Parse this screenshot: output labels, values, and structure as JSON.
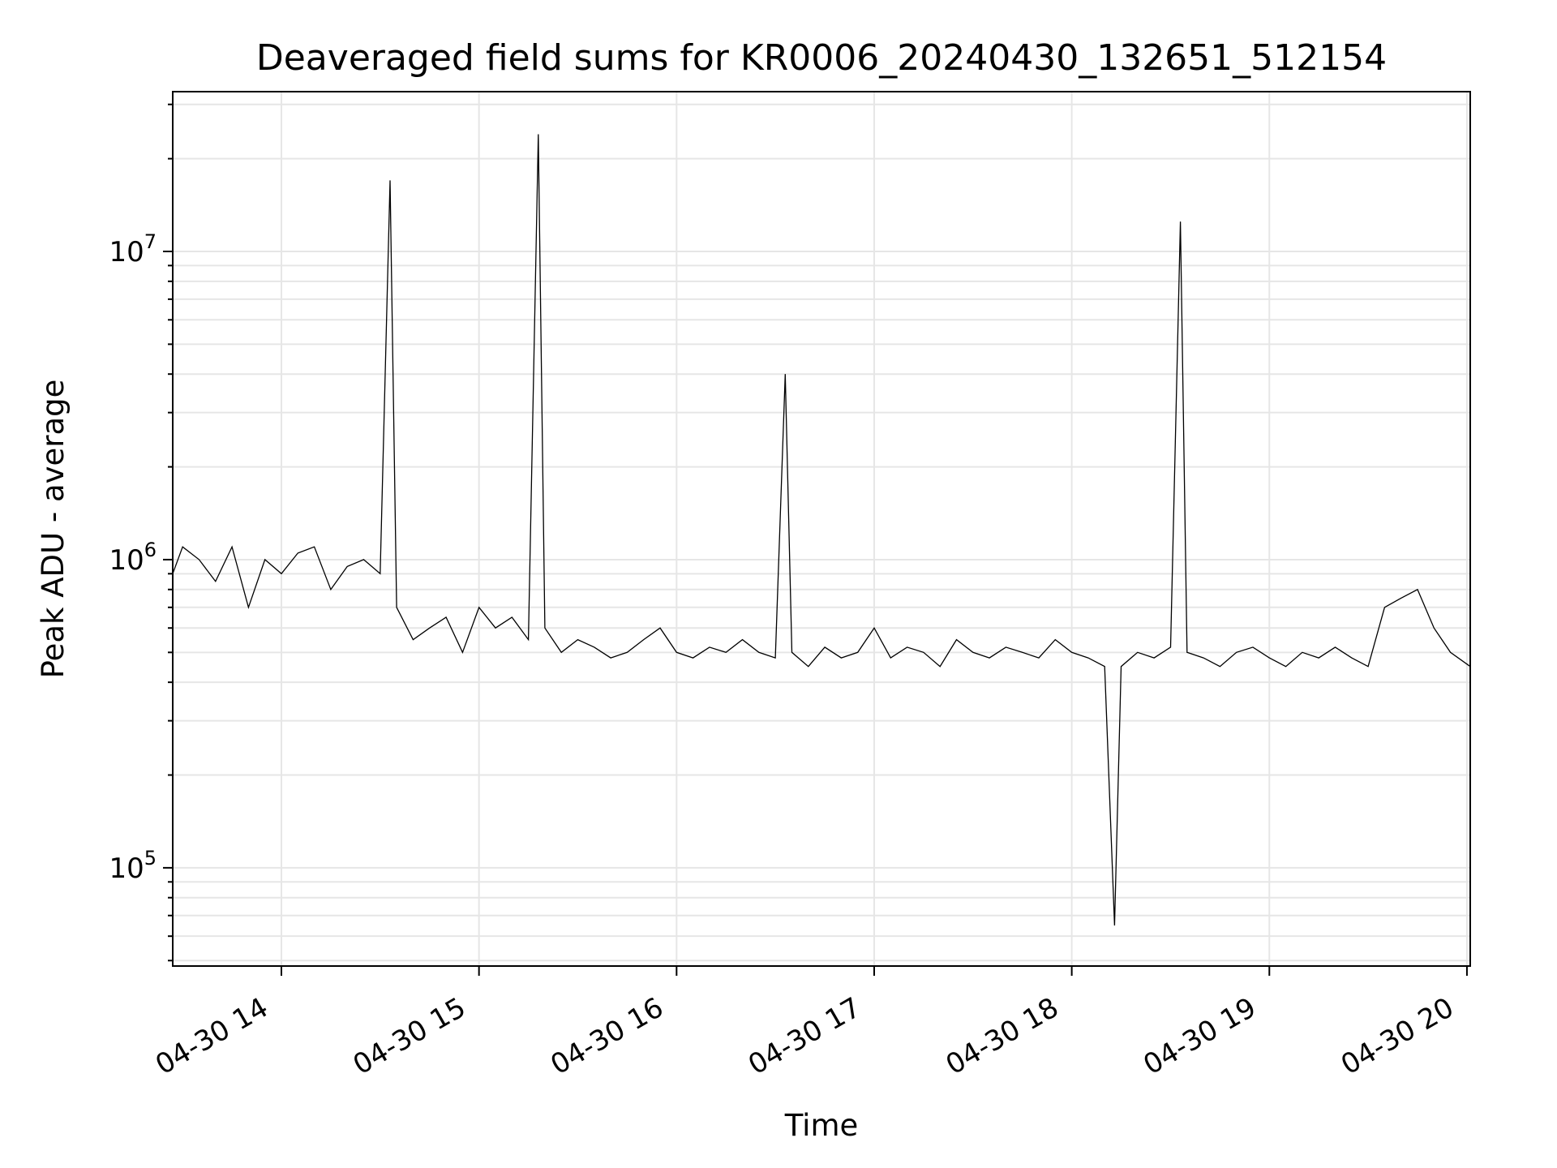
{
  "chart_data": {
    "type": "line",
    "title": "Deaveraged field sums for KR0006_20240430_132651_512154",
    "xlabel": "Time",
    "ylabel": "Peak ADU - average",
    "xscale": "time",
    "yscale": "log",
    "xlim": [
      "2024-04-30 13:27",
      "2024-04-30 20:01"
    ],
    "ylim": [
      48000,
      33000000
    ],
    "grid": true,
    "line_color": "#000000",
    "x_ticks": [
      {
        "t": "2024-04-30 14:00",
        "label": "04-30 14"
      },
      {
        "t": "2024-04-30 15:00",
        "label": "04-30 15"
      },
      {
        "t": "2024-04-30 16:00",
        "label": "04-30 16"
      },
      {
        "t": "2024-04-30 17:00",
        "label": "04-30 17"
      },
      {
        "t": "2024-04-30 18:00",
        "label": "04-30 18"
      },
      {
        "t": "2024-04-30 19:00",
        "label": "04-30 19"
      },
      {
        "t": "2024-04-30 20:00",
        "label": "04-30 20"
      }
    ],
    "y_ticks": [
      {
        "value": 100000,
        "base": "10",
        "exp": "5"
      },
      {
        "value": 1000000,
        "base": "10",
        "exp": "6"
      },
      {
        "value": 10000000,
        "base": "10",
        "exp": "7"
      }
    ],
    "series": [
      {
        "name": "",
        "x": [
          "2024-04-30 13:27",
          "2024-04-30 13:30",
          "2024-04-30 13:35",
          "2024-04-30 13:40",
          "2024-04-30 13:45",
          "2024-04-30 13:50",
          "2024-04-30 13:55",
          "2024-04-30 14:00",
          "2024-04-30 14:05",
          "2024-04-30 14:10",
          "2024-04-30 14:15",
          "2024-04-30 14:20",
          "2024-04-30 14:25",
          "2024-04-30 14:30",
          "2024-04-30 14:33",
          "2024-04-30 14:35",
          "2024-04-30 14:40",
          "2024-04-30 14:45",
          "2024-04-30 14:50",
          "2024-04-30 14:55",
          "2024-04-30 15:00",
          "2024-04-30 15:05",
          "2024-04-30 15:10",
          "2024-04-30 15:15",
          "2024-04-30 15:18",
          "2024-04-30 15:20",
          "2024-04-30 15:25",
          "2024-04-30 15:30",
          "2024-04-30 15:35",
          "2024-04-30 15:40",
          "2024-04-30 15:45",
          "2024-04-30 15:50",
          "2024-04-30 15:55",
          "2024-04-30 16:00",
          "2024-04-30 16:05",
          "2024-04-30 16:10",
          "2024-04-30 16:15",
          "2024-04-30 16:20",
          "2024-04-30 16:25",
          "2024-04-30 16:30",
          "2024-04-30 16:33",
          "2024-04-30 16:35",
          "2024-04-30 16:40",
          "2024-04-30 16:45",
          "2024-04-30 16:50",
          "2024-04-30 16:55",
          "2024-04-30 17:00",
          "2024-04-30 17:05",
          "2024-04-30 17:10",
          "2024-04-30 17:15",
          "2024-04-30 17:20",
          "2024-04-30 17:25",
          "2024-04-30 17:30",
          "2024-04-30 17:35",
          "2024-04-30 17:40",
          "2024-04-30 17:45",
          "2024-04-30 17:50",
          "2024-04-30 17:55",
          "2024-04-30 18:00",
          "2024-04-30 18:05",
          "2024-04-30 18:10",
          "2024-04-30 18:13",
          "2024-04-30 18:15",
          "2024-04-30 18:20",
          "2024-04-30 18:25",
          "2024-04-30 18:30",
          "2024-04-30 18:33",
          "2024-04-30 18:35",
          "2024-04-30 18:40",
          "2024-04-30 18:45",
          "2024-04-30 18:50",
          "2024-04-30 18:55",
          "2024-04-30 19:00",
          "2024-04-30 19:05",
          "2024-04-30 19:10",
          "2024-04-30 19:15",
          "2024-04-30 19:20",
          "2024-04-30 19:25",
          "2024-04-30 19:30",
          "2024-04-30 19:35",
          "2024-04-30 19:40",
          "2024-04-30 19:45",
          "2024-04-30 19:50",
          "2024-04-30 19:55",
          "2024-04-30 20:01"
        ],
        "y": [
          900000,
          1100000,
          1000000,
          850000,
          1100000,
          700000,
          1000000,
          900000,
          1050000,
          1100000,
          800000,
          950000,
          1000000,
          900000,
          17000000,
          700000,
          550000,
          600000,
          650000,
          500000,
          700000,
          600000,
          650000,
          550000,
          24000000,
          600000,
          500000,
          550000,
          520000,
          480000,
          500000,
          550000,
          600000,
          500000,
          480000,
          520000,
          500000,
          550000,
          500000,
          480000,
          4000000,
          500000,
          450000,
          520000,
          480000,
          500000,
          600000,
          480000,
          520000,
          500000,
          450000,
          550000,
          500000,
          480000,
          520000,
          500000,
          480000,
          550000,
          500000,
          480000,
          450000,
          65000,
          450000,
          500000,
          480000,
          520000,
          12500000,
          500000,
          480000,
          450000,
          500000,
          520000,
          480000,
          450000,
          500000,
          480000,
          520000,
          480000,
          450000,
          700000,
          750000,
          800000,
          600000,
          500000,
          450000
        ]
      }
    ],
    "annotations": []
  }
}
